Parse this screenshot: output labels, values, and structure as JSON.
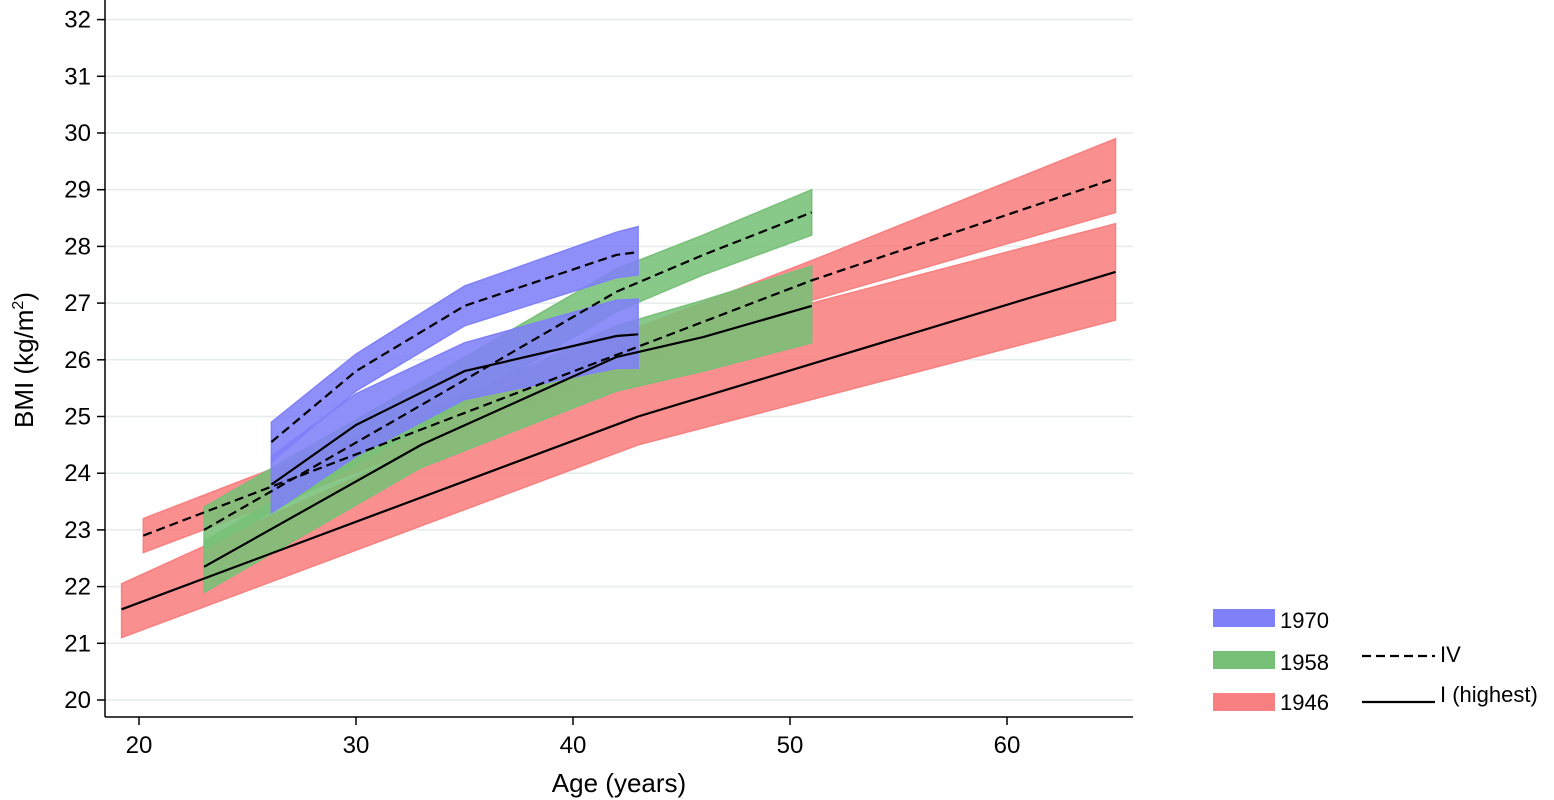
{
  "chart_data": {
    "type": "area",
    "xlabel": "Age (years)",
    "ylabel_main": "BMI (kg/m",
    "ylabel_sup": "2",
    "ylabel_close": ")",
    "xlim": [
      18.5,
      66
    ],
    "ylim": [
      19.7,
      32.3
    ],
    "xticks": [
      20,
      30,
      40,
      50,
      60
    ],
    "yticks": [
      20,
      21,
      22,
      23,
      24,
      25,
      26,
      27,
      28,
      29,
      30,
      31,
      32
    ],
    "grid": true,
    "legend_position": "bottom-right",
    "cohort_legend": [
      {
        "label": "1970",
        "color": "#8080f8"
      },
      {
        "label": "1958",
        "color": "#78c078"
      },
      {
        "label": "1946",
        "color": "#f88080"
      }
    ],
    "line_legend": [
      {
        "label": "IV",
        "style": "dashed"
      },
      {
        "label": "I (highest)",
        "style": "solid"
      }
    ],
    "bands": [
      {
        "cohort": "1946",
        "group": "IV",
        "color": "#f88080",
        "x": [
          20.2,
          51,
          65
        ],
        "upper": [
          23.2,
          27.75,
          29.9
        ],
        "lower": [
          22.6,
          27.05,
          28.6
        ],
        "line": [
          22.9,
          27.4,
          29.2
        ]
      },
      {
        "cohort": "1946",
        "group": "I (highest)",
        "color": "#f88080",
        "x": [
          19.2,
          43,
          65
        ],
        "upper": [
          22.05,
          26.2,
          28.4
        ],
        "lower": [
          21.1,
          24.5,
          26.7
        ],
        "line": [
          21.6,
          25.0,
          27.55
        ]
      },
      {
        "cohort": "1958",
        "group": "IV",
        "color": "#78c078",
        "x": [
          23,
          33,
          42,
          46,
          51
        ],
        "upper": [
          23.4,
          25.6,
          27.6,
          28.2,
          29.0
        ],
        "lower": [
          22.65,
          24.8,
          26.85,
          27.5,
          28.2
        ],
        "line": [
          23.0,
          25.2,
          27.2,
          27.85,
          28.6
        ]
      },
      {
        "cohort": "1958",
        "group": "I (highest)",
        "color": "#78c078",
        "x": [
          23,
          33,
          42,
          46,
          51
        ],
        "upper": [
          22.8,
          25.0,
          26.6,
          27.05,
          27.65
        ],
        "lower": [
          21.9,
          24.1,
          25.45,
          25.8,
          26.3
        ],
        "line": [
          22.35,
          24.5,
          26.05,
          26.4,
          26.95
        ]
      },
      {
        "cohort": "1970",
        "group": "IV",
        "color": "#8080f8",
        "x": [
          26.1,
          30,
          35,
          42,
          43
        ],
        "upper": [
          24.9,
          26.1,
          27.3,
          28.25,
          28.35
        ],
        "lower": [
          24.2,
          25.45,
          26.6,
          27.45,
          27.5
        ],
        "line": [
          24.55,
          25.8,
          26.95,
          27.85,
          27.9
        ]
      },
      {
        "cohort": "1970",
        "group": "I (highest)",
        "color": "#8080f8",
        "x": [
          26.1,
          30,
          35,
          42,
          43
        ],
        "upper": [
          24.3,
          25.4,
          26.3,
          27.05,
          27.07
        ],
        "lower": [
          23.3,
          24.3,
          25.3,
          25.85,
          25.85
        ],
        "line": [
          23.8,
          24.85,
          25.8,
          26.42,
          26.45
        ]
      }
    ]
  }
}
